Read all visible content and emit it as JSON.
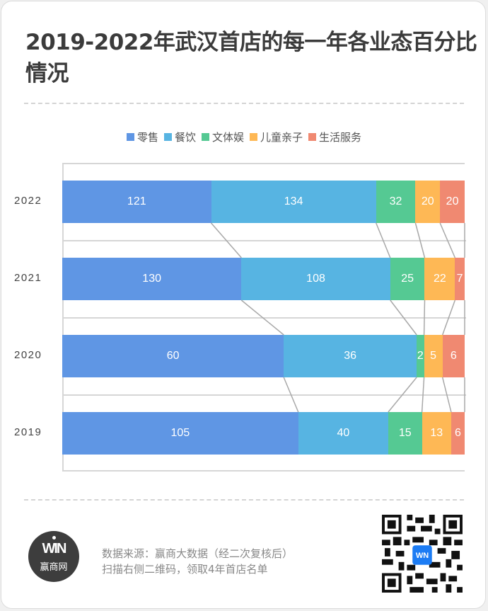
{
  "title": "2019-2022年武汉首店的每一年各业态百分比情况",
  "legend": [
    {
      "label": "零售",
      "color": "#5f96e4"
    },
    {
      "label": "餐饮",
      "color": "#57b4e2"
    },
    {
      "label": "文体娱",
      "color": "#55c993"
    },
    {
      "label": "儿童亲子",
      "color": "#feb855"
    },
    {
      "label": "生活服务",
      "color": "#f08971"
    }
  ],
  "chart_data": {
    "type": "bar",
    "orientation": "horizontal",
    "stacking": "percent",
    "title": "2019-2022年武汉首店的每一年各业态百分比情况",
    "categories": [
      "2022",
      "2021",
      "2020",
      "2019"
    ],
    "series": [
      {
        "name": "零售",
        "color": "#5f96e4",
        "values": [
          121,
          130,
          60,
          105
        ]
      },
      {
        "name": "餐饮",
        "color": "#57b4e2",
        "values": [
          134,
          108,
          36,
          40
        ]
      },
      {
        "name": "文体娱",
        "color": "#55c993",
        "values": [
          32,
          25,
          2,
          15
        ]
      },
      {
        "name": "儿童亲子",
        "color": "#feb855",
        "values": [
          20,
          22,
          5,
          13
        ]
      },
      {
        "name": "生活服务",
        "color": "#f08971",
        "values": [
          20,
          7,
          6,
          6
        ]
      }
    ],
    "xlabel": "",
    "ylabel": "",
    "legend_position": "top",
    "grid": true,
    "connector_lines": true
  },
  "footer": {
    "logo_text": "WIN",
    "logo_cn": "赢商网",
    "source_line1": "数据来源：赢商大数据（经二次复核后）",
    "source_line2": "扫描右侧二维码，领取4年首店名单",
    "qr_label": "qr-code"
  }
}
